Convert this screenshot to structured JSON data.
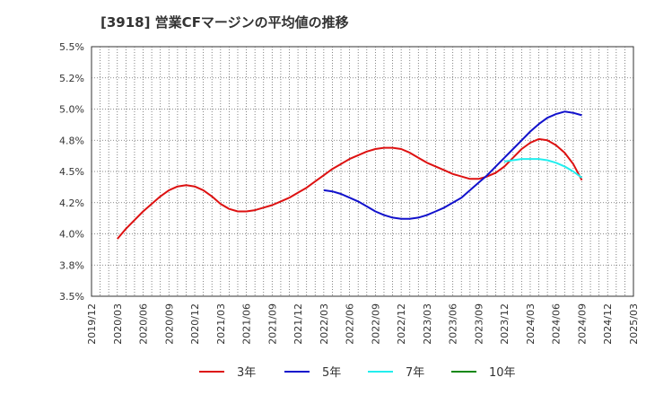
{
  "chart_data": {
    "type": "line",
    "title": "[3918]  営業CFマージンの平均値の推移",
    "xlabel": "",
    "ylabel": "",
    "ylim": [
      3.5,
      5.5
    ],
    "grid": true,
    "legend_position": "bottom",
    "y_ticks": [
      "3.5%",
      "3.8%",
      "4.0%",
      "4.2%",
      "4.5%",
      "4.8%",
      "5.0%",
      "5.2%",
      "5.5%"
    ],
    "y_tick_values": [
      3.5,
      3.75,
      4.0,
      4.25,
      4.5,
      4.75,
      5.0,
      5.25,
      5.5
    ],
    "x_ticks": [
      "2019/12",
      "2020/03",
      "2020/06",
      "2020/09",
      "2020/12",
      "2021/03",
      "2021/06",
      "2021/09",
      "2021/12",
      "2022/03",
      "2022/06",
      "2022/09",
      "2022/12",
      "2023/03",
      "2023/06",
      "2023/09",
      "2023/12",
      "2024/03",
      "2024/06",
      "2024/09",
      "2024/12",
      "2025/03"
    ],
    "series": [
      {
        "name": "3年",
        "color": "#dd1111",
        "x": [
          "2020/03",
          "2020/04",
          "2020/05",
          "2020/06",
          "2020/07",
          "2020/08",
          "2020/09",
          "2020/10",
          "2020/11",
          "2020/12",
          "2021/01",
          "2021/02",
          "2021/03",
          "2021/04",
          "2021/05",
          "2021/06",
          "2021/07",
          "2021/08",
          "2021/09",
          "2021/10",
          "2021/11",
          "2021/12",
          "2022/01",
          "2022/02",
          "2022/03",
          "2022/04",
          "2022/05",
          "2022/06",
          "2022/07",
          "2022/08",
          "2022/09",
          "2022/10",
          "2022/11",
          "2022/12",
          "2023/01",
          "2023/02",
          "2023/03",
          "2023/04",
          "2023/05",
          "2023/06",
          "2023/07",
          "2023/08",
          "2023/09",
          "2023/10",
          "2023/11",
          "2023/12",
          "2024/01",
          "2024/02",
          "2024/03",
          "2024/04",
          "2024/05",
          "2024/06",
          "2024/07",
          "2024/08",
          "2024/09"
        ],
        "values": [
          3.96,
          4.04,
          4.11,
          4.18,
          4.24,
          4.3,
          4.35,
          4.38,
          4.39,
          4.38,
          4.35,
          4.3,
          4.24,
          4.2,
          4.18,
          4.18,
          4.19,
          4.21,
          4.23,
          4.26,
          4.29,
          4.33,
          4.37,
          4.42,
          4.47,
          4.52,
          4.56,
          4.6,
          4.63,
          4.66,
          4.68,
          4.69,
          4.69,
          4.68,
          4.65,
          4.61,
          4.57,
          4.54,
          4.51,
          4.48,
          4.46,
          4.44,
          4.44,
          4.46,
          4.49,
          4.54,
          4.61,
          4.68,
          4.73,
          4.76,
          4.75,
          4.71,
          4.65,
          4.56,
          4.43
        ]
      },
      {
        "name": "5年",
        "color": "#1111cc",
        "x": [
          "2022/03",
          "2022/04",
          "2022/05",
          "2022/06",
          "2022/07",
          "2022/08",
          "2022/09",
          "2022/10",
          "2022/11",
          "2022/12",
          "2023/01",
          "2023/02",
          "2023/03",
          "2023/04",
          "2023/05",
          "2023/06",
          "2023/07",
          "2023/08",
          "2023/09",
          "2023/10",
          "2023/11",
          "2023/12",
          "2024/01",
          "2024/02",
          "2024/03",
          "2024/04",
          "2024/05",
          "2024/06",
          "2024/07",
          "2024/08",
          "2024/09"
        ],
        "values": [
          4.35,
          4.34,
          4.32,
          4.29,
          4.26,
          4.22,
          4.18,
          4.15,
          4.13,
          4.12,
          4.12,
          4.13,
          4.15,
          4.18,
          4.21,
          4.25,
          4.29,
          4.35,
          4.41,
          4.47,
          4.54,
          4.61,
          4.68,
          4.75,
          4.82,
          4.88,
          4.93,
          4.96,
          4.98,
          4.97,
          4.95
        ]
      },
      {
        "name": "7年",
        "color": "#22eeee",
        "x": [
          "2023/12",
          "2024/01",
          "2024/02",
          "2024/03",
          "2024/04",
          "2024/05",
          "2024/06",
          "2024/07",
          "2024/08",
          "2024/09"
        ],
        "values": [
          4.58,
          4.59,
          4.6,
          4.6,
          4.6,
          4.59,
          4.57,
          4.54,
          4.5,
          4.45
        ]
      },
      {
        "name": "10年",
        "color": "#118811",
        "x": [],
        "values": []
      }
    ]
  }
}
